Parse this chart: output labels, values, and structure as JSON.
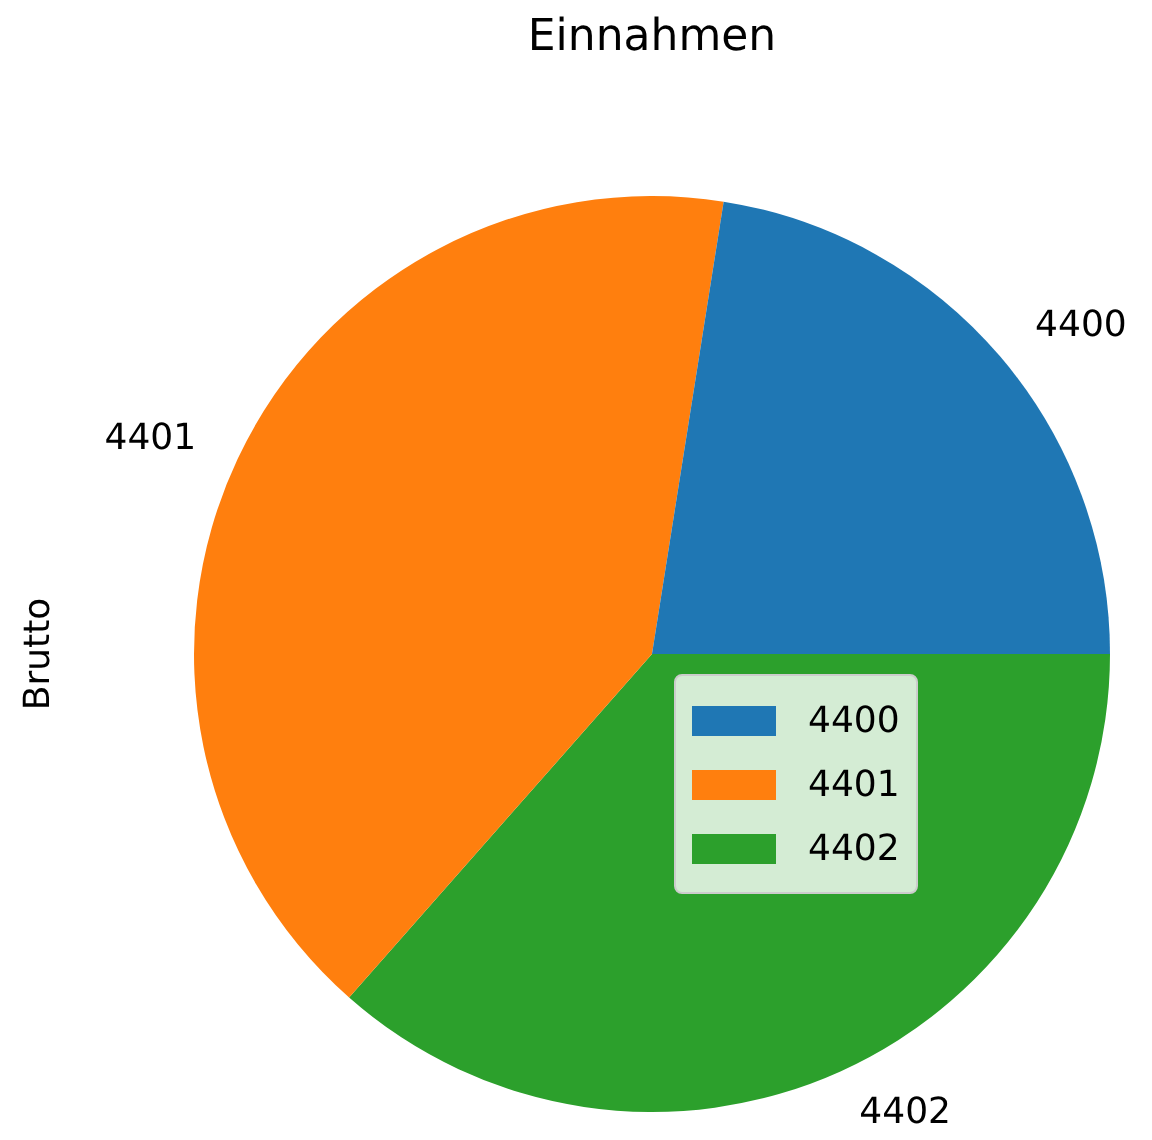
{
  "chart_data": {
    "type": "pie",
    "title": "Einnahmen",
    "ylabel": "Brutto",
    "categories": [
      "4400",
      "4401",
      "4402"
    ],
    "values": [
      22.5,
      41,
      36.5
    ],
    "colors": [
      "#1f77b4",
      "#ff7f0e",
      "#2ca02c"
    ],
    "legend": "right"
  }
}
